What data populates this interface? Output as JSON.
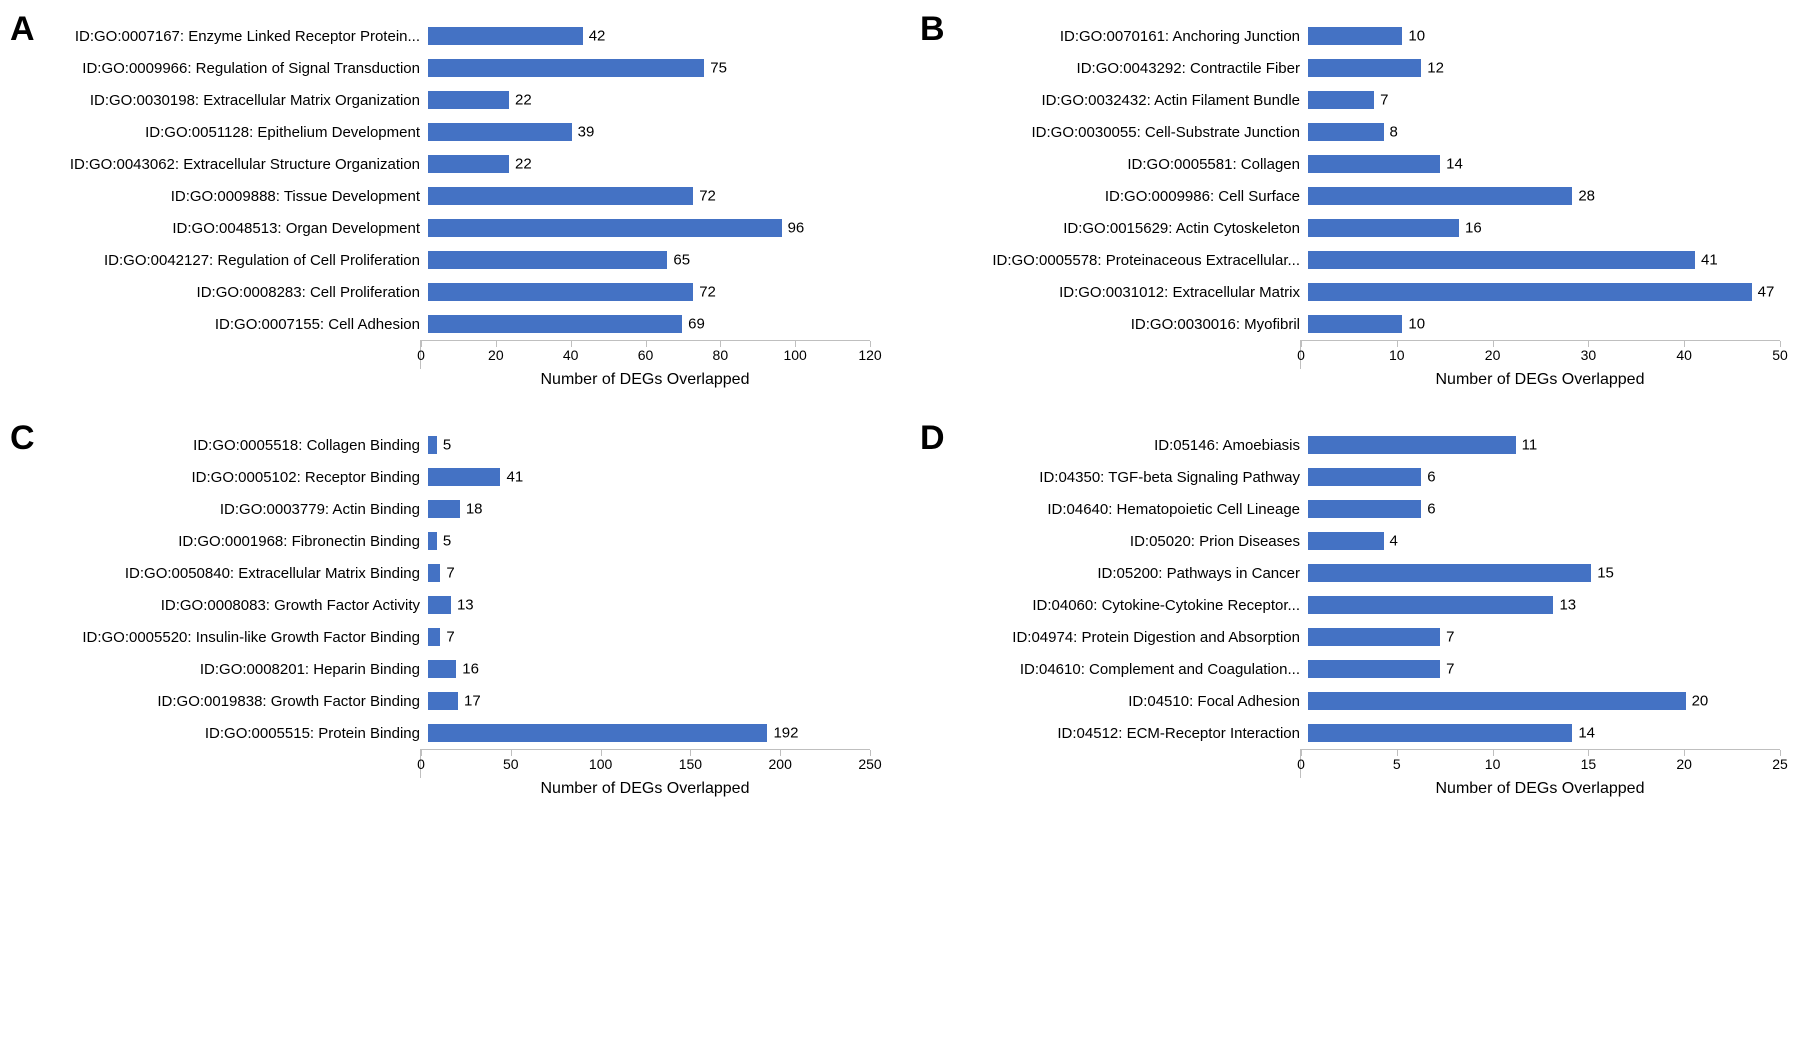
{
  "bar_color": "#4472c4",
  "grid_color": "#bfbfbf",
  "background_color": "#ffffff",
  "label_fontsize": 15,
  "tick_fontsize": 14,
  "axis_title_fontsize": 16,
  "panel_letter_fontsize": 34,
  "panels": [
    {
      "letter": "A",
      "x_title": "Number of DEGs Overlapped",
      "xmax": 120,
      "xtick_step": 20,
      "cat_label_width": 370,
      "items": [
        {
          "label": "ID:GO:0007167: Enzyme Linked Receptor Protein...",
          "value": 42
        },
        {
          "label": "ID:GO:0009966: Regulation of Signal Transduction",
          "value": 75
        },
        {
          "label": "ID:GO:0030198: Extracellular Matrix Organization",
          "value": 22
        },
        {
          "label": "ID:GO:0051128: Epithelium Development",
          "value": 39
        },
        {
          "label": "ID:GO:0043062: Extracellular Structure Organization",
          "value": 22
        },
        {
          "label": "ID:GO:0009888: Tissue Development",
          "value": 72
        },
        {
          "label": "ID:GO:0048513: Organ Development",
          "value": 96
        },
        {
          "label": "ID:GO:0042127: Regulation of Cell Proliferation",
          "value": 65
        },
        {
          "label": "ID:GO:0008283: Cell Proliferation",
          "value": 72
        },
        {
          "label": "ID:GO:0007155: Cell Adhesion",
          "value": 69
        }
      ]
    },
    {
      "letter": "B",
      "x_title": "Number of DEGs Overlapped",
      "xmax": 50,
      "xtick_step": 10,
      "cat_label_width": 340,
      "items": [
        {
          "label": "ID:GO:0070161: Anchoring Junction",
          "value": 10
        },
        {
          "label": "ID:GO:0043292: Contractile Fiber",
          "value": 12
        },
        {
          "label": "ID:GO:0032432: Actin Filament Bundle",
          "value": 7
        },
        {
          "label": "ID:GO:0030055: Cell-Substrate Junction",
          "value": 8
        },
        {
          "label": "ID:GO:0005581: Collagen",
          "value": 14
        },
        {
          "label": "ID:GO:0009986: Cell Surface",
          "value": 28
        },
        {
          "label": "ID:GO:0015629: Actin Cytoskeleton",
          "value": 16
        },
        {
          "label": "ID:GO:0005578: Proteinaceous Extracellular...",
          "value": 41
        },
        {
          "label": "ID:GO:0031012: Extracellular Matrix",
          "value": 47
        },
        {
          "label": "ID:GO:0030016: Myofibril",
          "value": 10
        }
      ]
    },
    {
      "letter": "C",
      "x_title": "Number of DEGs Overlapped",
      "xmax": 250,
      "xtick_step": 50,
      "cat_label_width": 370,
      "items": [
        {
          "label": "ID:GO:0005518: Collagen Binding",
          "value": 5
        },
        {
          "label": "ID:GO:0005102: Receptor Binding",
          "value": 41
        },
        {
          "label": "ID:GO:0003779: Actin Binding",
          "value": 18
        },
        {
          "label": "ID:GO:0001968: Fibronectin Binding",
          "value": 5
        },
        {
          "label": "ID:GO:0050840: Extracellular Matrix Binding",
          "value": 7
        },
        {
          "label": "ID:GO:0008083: Growth Factor Activity",
          "value": 13
        },
        {
          "label": "ID:GO:0005520: Insulin-like Growth Factor Binding",
          "value": 7
        },
        {
          "label": "ID:GO:0008201: Heparin Binding",
          "value": 16
        },
        {
          "label": "ID:GO:0019838: Growth Factor Binding",
          "value": 17
        },
        {
          "label": "ID:GO:0005515: Protein Binding",
          "value": 192
        }
      ]
    },
    {
      "letter": "D",
      "x_title": "Number of DEGs Overlapped",
      "xmax": 25,
      "xtick_step": 5,
      "cat_label_width": 340,
      "items": [
        {
          "label": "ID:05146: Amoebiasis",
          "value": 11
        },
        {
          "label": "ID:04350: TGF-beta Signaling Pathway",
          "value": 6
        },
        {
          "label": "ID:04640: Hematopoietic Cell Lineage",
          "value": 6
        },
        {
          "label": "ID:05020: Prion Diseases",
          "value": 4
        },
        {
          "label": "ID:05200: Pathways in Cancer",
          "value": 15
        },
        {
          "label": "ID:04060: Cytokine-Cytokine Receptor...",
          "value": 13
        },
        {
          "label": "ID:04974: Protein Digestion and Absorption",
          "value": 7
        },
        {
          "label": "ID:04610: Complement and Coagulation...",
          "value": 7
        },
        {
          "label": "ID:04510: Focal Adhesion",
          "value": 20
        },
        {
          "label": "ID:04512: ECM-Receptor Interaction",
          "value": 14
        }
      ]
    }
  ]
}
